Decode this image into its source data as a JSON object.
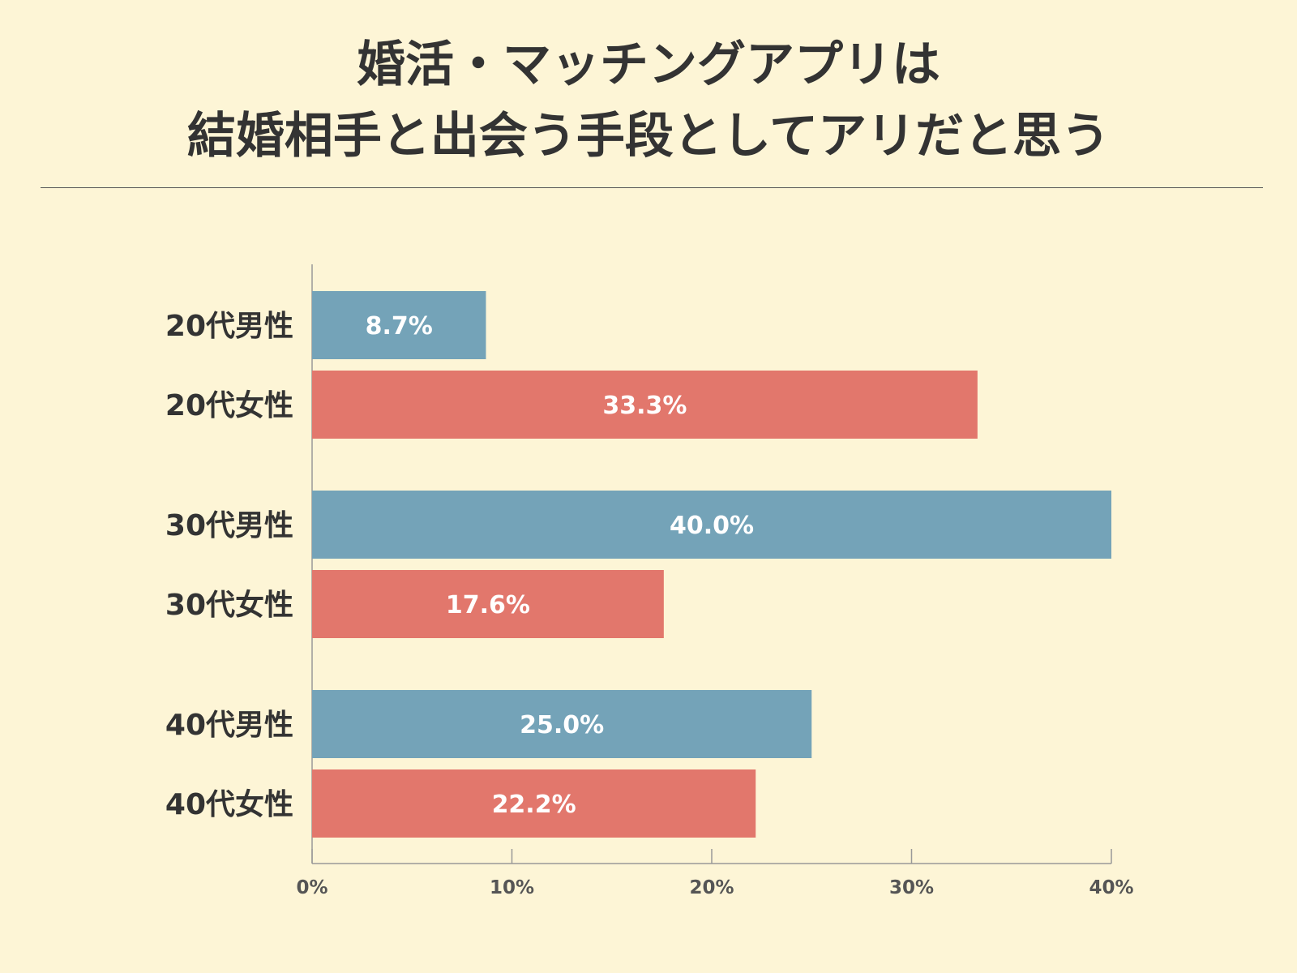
{
  "title": {
    "line1": "婚活・マッチングアプリは",
    "line2": "結婚相手と出会う手段としてアリだと思う"
  },
  "colors": {
    "background": "#fdf5d6",
    "male": "#74a3b8",
    "female": "#e2776c",
    "text": "#333333",
    "axis": "#999999"
  },
  "chart_data": {
    "type": "bar",
    "orientation": "horizontal",
    "categories": [
      "20代男性",
      "20代女性",
      "30代男性",
      "30代女性",
      "40代男性",
      "40代女性"
    ],
    "values": [
      8.7,
      33.3,
      40.0,
      17.6,
      25.0,
      22.2
    ],
    "value_labels": [
      "8.7%",
      "33.3%",
      "40.0%",
      "17.6%",
      "25.0%",
      "22.2%"
    ],
    "bar_colors": [
      "#74a3b8",
      "#e2776c",
      "#74a3b8",
      "#e2776c",
      "#74a3b8",
      "#e2776c"
    ],
    "xlim": [
      0,
      40
    ],
    "x_ticks": [
      0,
      10,
      20,
      30,
      40
    ],
    "x_tick_labels": [
      "0%",
      "10%",
      "20%",
      "30%",
      "40%"
    ],
    "grid": false
  }
}
